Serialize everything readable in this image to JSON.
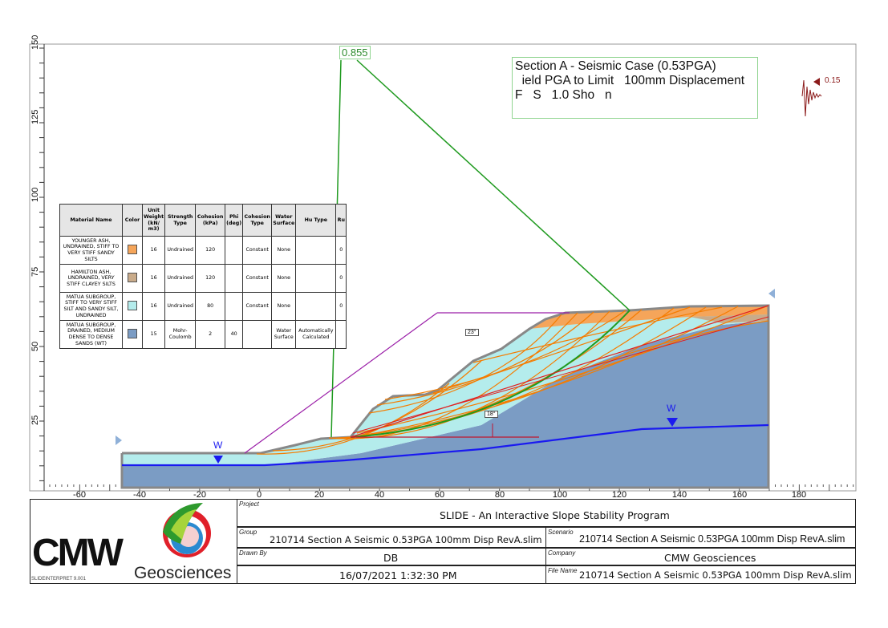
{
  "title_box": {
    "lines": [
      "Section A - Seismic Case (0.53PGA)",
      "  ield PGA to Limit   100mm Displacement",
      "F   S   1.0 Sho   n"
    ]
  },
  "factor_of_safety": "0.855",
  "seismic_load": {
    "value": "0.15",
    "color": "#8b1a1a"
  },
  "water_marker": "W",
  "angle_labels": [
    "23°",
    "18°"
  ],
  "x_axis": {
    "ticks": [
      "-60",
      "-40",
      "-20",
      "0",
      "20",
      "40",
      "60",
      "80",
      "100",
      "120",
      "140",
      "160",
      "180"
    ]
  },
  "y_axis": {
    "ticks": [
      "150",
      "125",
      "100",
      "75",
      "50",
      "25"
    ]
  },
  "materials_table": {
    "headers": [
      "Material Name",
      "Color",
      "Unit Weight (kN/ m3)",
      "Strength Type",
      "Cohesion (kPa)",
      "Phi (deg)",
      "Cohesion Type",
      "Water Surface",
      "Hu Type",
      "Ru"
    ],
    "rows": [
      {
        "name": "YOUNGER ASH, UNDRAINED, STIFF TO VERY STIFF SANDY SILTS",
        "color": "#f5a55a",
        "unit_weight": "16",
        "strength_type": "Undrained",
        "cohesion": "120",
        "phi": "",
        "cohesion_type": "Constant",
        "water_surface": "None",
        "hu_type": "",
        "ru": "0"
      },
      {
        "name": "HAMILTON ASH, UNDRAINED, VERY STIFF CLAYEY SILTS",
        "color": "#c9ab8a",
        "unit_weight": "16",
        "strength_type": "Undrained",
        "cohesion": "120",
        "phi": "",
        "cohesion_type": "Constant",
        "water_surface": "None",
        "hu_type": "",
        "ru": "0"
      },
      {
        "name": "MATUA SUBGROUP, STIFF TO VERY STIFF SILT AND SANDY SILT, UNDRAINED",
        "color": "#b4ecec",
        "unit_weight": "16",
        "strength_type": "Undrained",
        "cohesion": "80",
        "phi": "",
        "cohesion_type": "Constant",
        "water_surface": "None",
        "hu_type": "",
        "ru": "0"
      },
      {
        "name": "MATUA SUBGROUP, DRAINED, MEDIUM DENSE TO DENSE SANDS (WT)",
        "color": "#7b9cc4",
        "unit_weight": "15",
        "strength_type": "Mohr-Coulomb",
        "cohesion": "2",
        "phi": "40",
        "cohesion_type": "",
        "water_surface": "Water Surface",
        "hu_type": "Automatically Calculated",
        "ru": ""
      }
    ]
  },
  "title_block": {
    "logo_text": "CMW",
    "logo_subtext": "Geosciences",
    "version": "SLIDEINTERPRET 9.001",
    "project_label": "Project",
    "project": "SLIDE - An Interactive Slope Stability Program",
    "group_label": "Group",
    "group": "210714 Section A Seismic 0.53PGA 100mm Disp RevA.slim",
    "scenario_label": "Scenario",
    "scenario": "210714 Section A Seismic 0.53PGA 100mm Disp RevA.slim",
    "drawn_by_label": "Drawn By",
    "drawn_by": "DB",
    "company_label": "Company",
    "company": "CMW Geosciences",
    "date": "16/07/2021 1:32:30 PM",
    "file_name_label": "File Name",
    "file_name": "210714 Section A Seismic 0.53PGA 100mm Disp RevA.slim"
  }
}
